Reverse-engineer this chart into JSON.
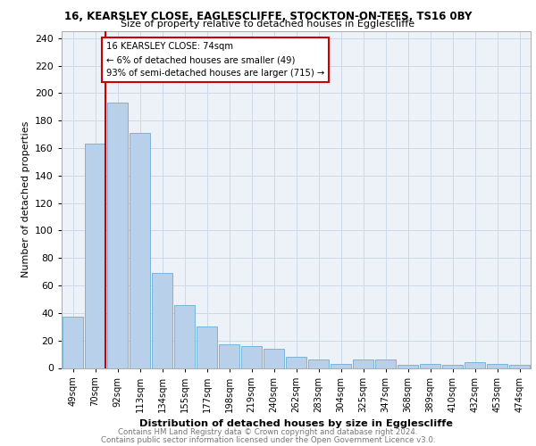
{
  "title1": "16, KEARSLEY CLOSE, EAGLESCLIFFE, STOCKTON-ON-TEES, TS16 0BY",
  "title2": "Size of property relative to detached houses in Egglescliffe",
  "xlabel": "Distribution of detached houses by size in Egglescliffe",
  "ylabel": "Number of detached properties",
  "categories": [
    "49sqm",
    "70sqm",
    "92sqm",
    "113sqm",
    "134sqm",
    "155sqm",
    "177sqm",
    "198sqm",
    "219sqm",
    "240sqm",
    "262sqm",
    "283sqm",
    "304sqm",
    "325sqm",
    "347sqm",
    "368sqm",
    "389sqm",
    "410sqm",
    "432sqm",
    "453sqm",
    "474sqm"
  ],
  "values": [
    37,
    163,
    193,
    171,
    69,
    46,
    30,
    17,
    16,
    14,
    8,
    6,
    3,
    6,
    6,
    2,
    3,
    2,
    4,
    3,
    2
  ],
  "bar_color": "#b8d0ea",
  "bar_edge_color": "#6aaed6",
  "vline_color": "#cc0000",
  "annotation_lines": [
    "16 KEARSLEY CLOSE: 74sqm",
    "← 6% of detached houses are smaller (49)",
    "93% of semi-detached houses are larger (715) →"
  ],
  "annotation_box_color": "#cc0000",
  "ylim": [
    0,
    245
  ],
  "yticks": [
    0,
    20,
    40,
    60,
    80,
    100,
    120,
    140,
    160,
    180,
    200,
    220,
    240
  ],
  "footnote1": "Contains HM Land Registry data © Crown copyright and database right 2024.",
  "footnote2": "Contains public sector information licensed under the Open Government Licence v3.0.",
  "grid_color": "#ccd9e8",
  "bg_color": "#edf2f8"
}
